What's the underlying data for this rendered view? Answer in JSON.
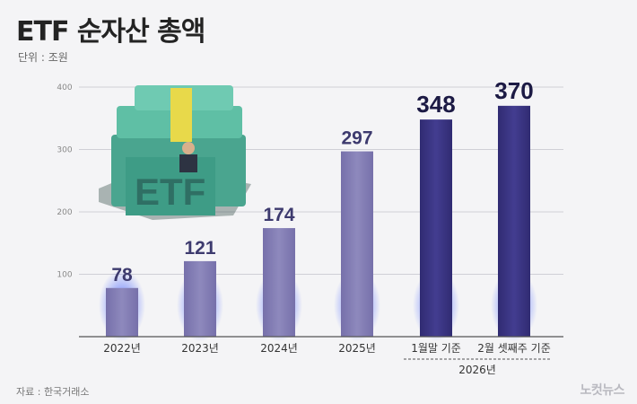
{
  "header": {
    "title": "ETF 순자산 총액",
    "unit": "단위 : 조원"
  },
  "footer": {
    "source": "자료 : 한국거래소",
    "logo": "노컷뉴스"
  },
  "illustration": {
    "etf_label": "ETF"
  },
  "chart_data": {
    "type": "bar",
    "categories": [
      "2022년",
      "2023년",
      "2024년",
      "2025년",
      "1월말 기준",
      "2월 셋째주 기준"
    ],
    "group_label": "2026년",
    "values": [
      78,
      121,
      174,
      297,
      348,
      370
    ],
    "value_labels": [
      "78",
      "121",
      "174",
      "297",
      "348",
      "370"
    ],
    "yticks": [
      "400",
      "300",
      "200",
      "100"
    ],
    "ylim": [
      0,
      400
    ],
    "colors": {
      "past": "#8580b5",
      "current": "#3b3682",
      "grid": "#cfcfd6"
    }
  }
}
